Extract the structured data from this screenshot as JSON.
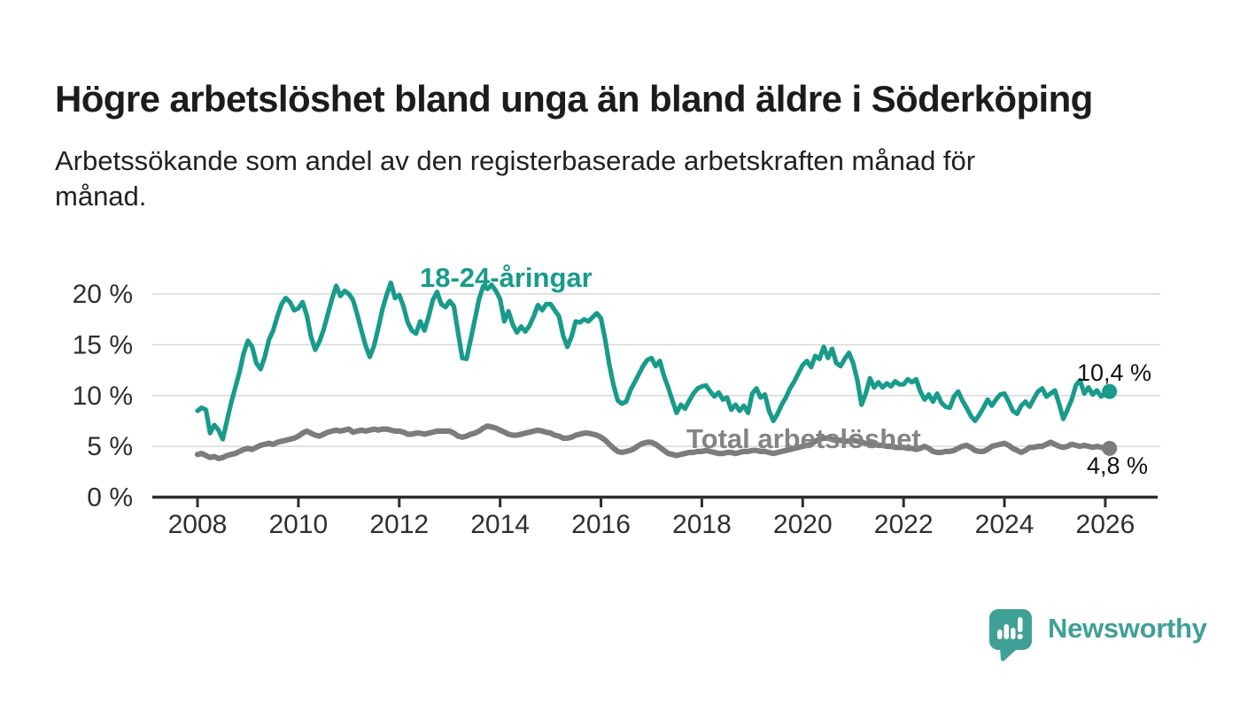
{
  "header": {
    "title": "Högre arbetslöshet bland unga än bland äldre i Söderköping",
    "subtitle_line1": "Arbetssökande som andel av den registerbaserade arbetskraften månad för",
    "subtitle_line2": "månad."
  },
  "footer": {
    "brand": "Newsworthy"
  },
  "colors": {
    "youth": "#189b8b",
    "total": "#7c7c7c",
    "total_label": "#838383",
    "grid": "#d9d9d9",
    "axis": "#2e2e2e",
    "tick_text": "#2f2f2f",
    "data_label": "#111111",
    "logo": "#3fa096",
    "background": "#ffffff"
  },
  "chart_data": {
    "type": "line",
    "unit": "%",
    "frequency": "monthly",
    "x_start_year": 2008,
    "x_start_month": 1,
    "x_ticks": [
      2008,
      2010,
      2012,
      2014,
      2016,
      2018,
      2020,
      2022,
      2024,
      2026
    ],
    "y_ticks": [
      {
        "value": 0,
        "label": "0 %"
      },
      {
        "value": 5,
        "label": "5 %"
      },
      {
        "value": 10,
        "label": "10 %"
      },
      {
        "value": 15,
        "label": "15 %"
      },
      {
        "value": 20,
        "label": "20 %"
      }
    ],
    "ylim": [
      0,
      21.5
    ],
    "grid": "horizontal",
    "legend_position": "inline-labels",
    "series": [
      {
        "name": "18-24-åringar",
        "color": "#189b8b",
        "end_label": "10,4 %",
        "end_value": 10.4,
        "values": [
          8.5,
          8.8,
          8.6,
          6.3,
          7.1,
          6.6,
          5.7,
          7.5,
          9.3,
          10.8,
          12.3,
          14.2,
          15.4,
          14.8,
          13.2,
          12.6,
          13.8,
          15.5,
          16.4,
          17.8,
          19.0,
          19.6,
          19.2,
          18.4,
          18.6,
          19.2,
          17.9,
          15.8,
          14.5,
          15.3,
          16.5,
          18.0,
          19.5,
          20.8,
          19.8,
          20.3,
          20.0,
          19.4,
          18.0,
          16.4,
          14.9,
          13.8,
          14.9,
          16.6,
          18.5,
          19.9,
          21.1,
          19.6,
          19.9,
          18.8,
          17.2,
          16.4,
          16.1,
          17.3,
          16.4,
          17.8,
          19.4,
          20.2,
          19.0,
          18.7,
          19.3,
          18.8,
          16.2,
          13.7,
          13.6,
          15.5,
          17.5,
          19.5,
          20.8,
          20.5,
          20.9,
          20.3,
          19.5,
          17.3,
          18.3,
          17.0,
          16.2,
          16.8,
          16.3,
          16.9,
          17.8,
          18.9,
          18.4,
          19.0,
          19.0,
          18.4,
          17.8,
          15.9,
          14.8,
          15.8,
          17.3,
          17.2,
          17.5,
          17.3,
          17.7,
          18.1,
          17.6,
          15.5,
          13.0,
          11.0,
          9.5,
          9.2,
          9.4,
          10.5,
          11.3,
          12.1,
          12.9,
          13.5,
          13.7,
          12.9,
          13.4,
          11.9,
          10.8,
          9.5,
          8.3,
          9.1,
          8.7,
          9.5,
          10.2,
          10.7,
          10.9,
          11.0,
          10.4,
          9.9,
          10.3,
          9.6,
          9.8,
          8.6,
          9.1,
          8.5,
          9.0,
          8.3,
          10.2,
          10.7,
          9.8,
          10.1,
          8.5,
          7.5,
          8.2,
          9.1,
          9.8,
          10.7,
          11.4,
          12.2,
          13.0,
          13.4,
          12.8,
          13.9,
          13.6,
          14.8,
          13.7,
          14.6,
          13.2,
          12.9,
          13.6,
          14.2,
          13.2,
          11.5,
          9.1,
          10.2,
          11.7,
          10.8,
          11.3,
          10.8,
          11.2,
          10.9,
          11.4,
          11.1,
          11.1,
          11.6,
          11.3,
          11.6,
          10.4,
          9.6,
          10.1,
          9.4,
          10.2,
          9.3,
          8.9,
          8.8,
          9.9,
          10.4,
          9.5,
          8.8,
          8.0,
          7.5,
          8.1,
          8.8,
          9.6,
          9.0,
          9.6,
          10.1,
          10.2,
          9.4,
          8.5,
          8.2,
          9.0,
          9.4,
          8.9,
          9.7,
          10.4,
          10.7,
          9.9,
          10.2,
          10.5,
          9.2,
          7.7,
          8.6,
          9.6,
          11.0,
          11.5,
          10.2,
          10.8,
          10.1,
          10.5,
          9.9,
          10.2,
          10.4
        ]
      },
      {
        "name": "Total arbetslöshet",
        "color": "#7c7c7c",
        "end_label": "4,8 %",
        "end_value": 4.8,
        "values": [
          4.2,
          4.3,
          4.1,
          3.9,
          4.0,
          3.8,
          3.9,
          4.1,
          4.2,
          4.3,
          4.5,
          4.7,
          4.8,
          4.7,
          4.9,
          5.1,
          5.2,
          5.3,
          5.2,
          5.4,
          5.5,
          5.6,
          5.7,
          5.8,
          6.0,
          6.3,
          6.5,
          6.3,
          6.1,
          6.0,
          6.2,
          6.4,
          6.5,
          6.6,
          6.5,
          6.6,
          6.7,
          6.4,
          6.5,
          6.6,
          6.5,
          6.6,
          6.7,
          6.6,
          6.7,
          6.7,
          6.6,
          6.5,
          6.5,
          6.4,
          6.2,
          6.2,
          6.3,
          6.3,
          6.2,
          6.3,
          6.4,
          6.5,
          6.5,
          6.5,
          6.5,
          6.3,
          6.0,
          5.9,
          6.0,
          6.2,
          6.3,
          6.5,
          6.8,
          7.0,
          6.9,
          6.8,
          6.6,
          6.4,
          6.2,
          6.1,
          6.1,
          6.2,
          6.3,
          6.4,
          6.5,
          6.6,
          6.5,
          6.4,
          6.3,
          6.1,
          6.0,
          5.8,
          5.8,
          5.9,
          6.1,
          6.2,
          6.3,
          6.3,
          6.2,
          6.1,
          5.9,
          5.6,
          5.2,
          4.8,
          4.5,
          4.4,
          4.5,
          4.6,
          4.8,
          5.1,
          5.3,
          5.4,
          5.4,
          5.2,
          4.9,
          4.6,
          4.3,
          4.2,
          4.1,
          4.2,
          4.3,
          4.4,
          4.4,
          4.5,
          4.5,
          4.6,
          4.5,
          4.4,
          4.3,
          4.3,
          4.4,
          4.4,
          4.3,
          4.4,
          4.5,
          4.5,
          4.6,
          4.6,
          4.5,
          4.5,
          4.4,
          4.3,
          4.4,
          4.5,
          4.6,
          4.7,
          4.8,
          4.9,
          5.0,
          5.1,
          5.2,
          5.5,
          5.7,
          5.8,
          5.8,
          5.7,
          5.6,
          5.6,
          5.5,
          5.5,
          5.6,
          5.5,
          5.4,
          5.3,
          5.3,
          5.2,
          5.1,
          5.1,
          5.0,
          5.0,
          4.9,
          4.9,
          4.9,
          4.8,
          4.8,
          4.7,
          4.8,
          5.0,
          4.8,
          4.5,
          4.4,
          4.4,
          4.5,
          4.5,
          4.6,
          4.8,
          5.0,
          5.1,
          4.9,
          4.6,
          4.5,
          4.5,
          4.7,
          5.0,
          5.1,
          5.2,
          5.3,
          5.1,
          4.8,
          4.6,
          4.4,
          4.6,
          4.9,
          4.9,
          5.0,
          5.0,
          5.2,
          5.4,
          5.2,
          5.0,
          4.9,
          5.0,
          5.2,
          5.1,
          5.0,
          5.1,
          5.0,
          4.9,
          5.0,
          4.9,
          4.8,
          4.8
        ]
      }
    ]
  }
}
